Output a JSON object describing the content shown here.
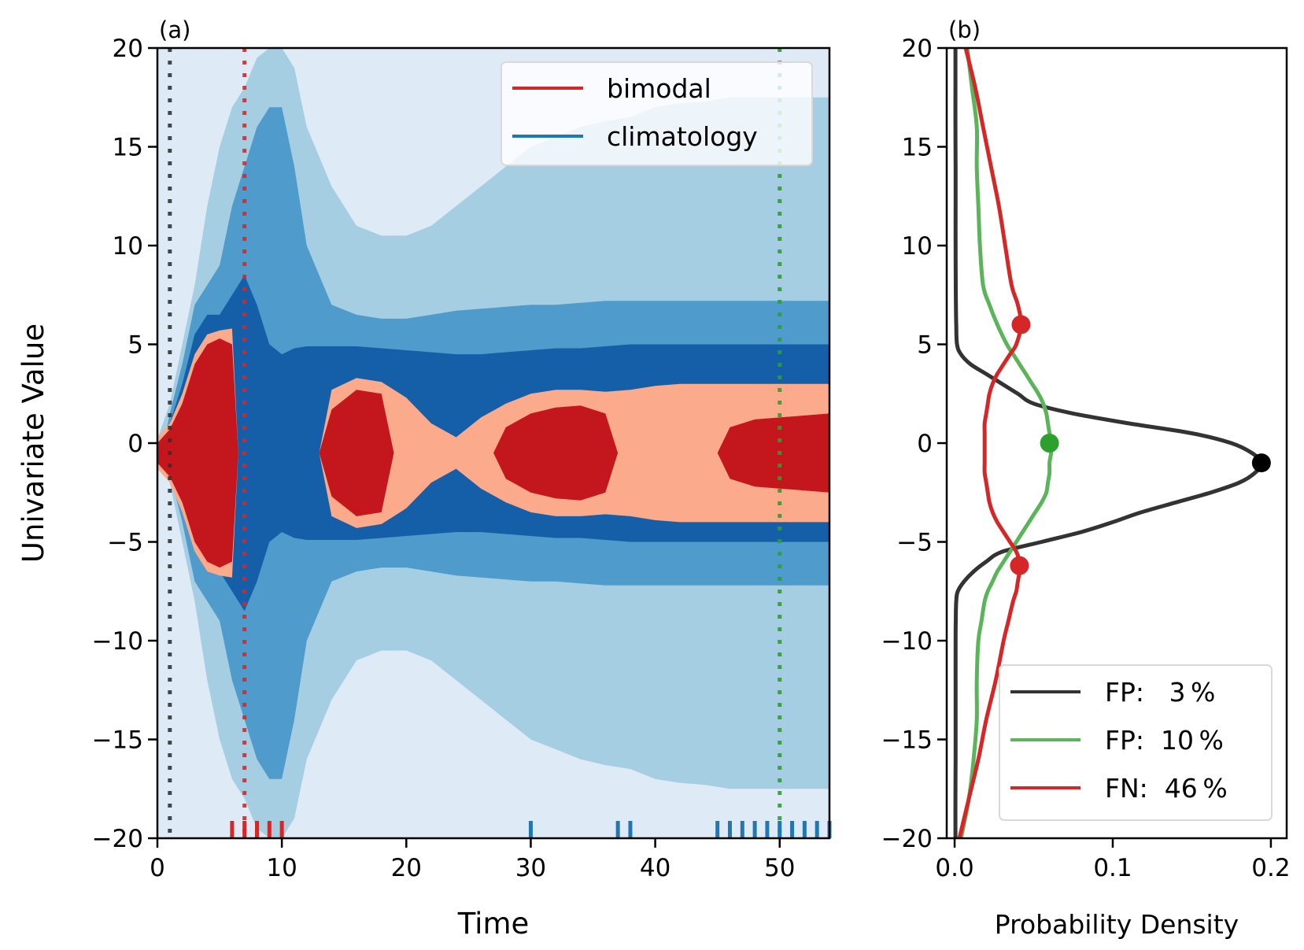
{
  "chart_data": [
    {
      "panel": "(a)",
      "type": "heatmap",
      "subtype": "filled-contour",
      "title": "",
      "xlabel": "Time",
      "ylabel": "Univariate Value",
      "xlim": [
        0,
        54
      ],
      "ylim": [
        -20,
        20
      ],
      "xticks": [
        0,
        10,
        20,
        30,
        40,
        50
      ],
      "yticks": [
        -20,
        -15,
        -10,
        -5,
        0,
        5,
        10,
        15,
        20
      ],
      "xtick_labels": [
        "0",
        "10",
        "20",
        "30",
        "40",
        "50"
      ],
      "ytick_labels": [
        "−20",
        "−15",
        "−10",
        "−5",
        "0",
        "5",
        "10",
        "15",
        "20"
      ],
      "contour_levels": [
        {
          "name": "clim-lightest",
          "color": "#deebf7"
        },
        {
          "name": "clim-light",
          "color": "#a6cee3"
        },
        {
          "name": "clim-mid",
          "color": "#4f9bcb"
        },
        {
          "name": "clim-dark",
          "color": "#155fa8"
        },
        {
          "name": "bimodal-light",
          "color": "#fbaa8b"
        },
        {
          "name": "bimodal-dark",
          "color": "#c4171d"
        }
      ],
      "envelopes": {
        "t": [
          0,
          1,
          2,
          3,
          4,
          5,
          6,
          7,
          8,
          9,
          10,
          11,
          12,
          14,
          16,
          18,
          20,
          22,
          24,
          26,
          28,
          30,
          32,
          34,
          36,
          38,
          40,
          42,
          44,
          46,
          48,
          50,
          52,
          54
        ],
        "clim_light_half_width": [
          0.2,
          2,
          5,
          8,
          12,
          15,
          17,
          18,
          19.5,
          20,
          20,
          19,
          16,
          13,
          11,
          10.5,
          10.5,
          11,
          12,
          13,
          14,
          15,
          15.5,
          16,
          16.3,
          16.5,
          17,
          17.2,
          17.3,
          17.5,
          17.5,
          17.5,
          17.5,
          17.5
        ],
        "clim_mid_half_width": [
          0,
          1.5,
          4,
          7,
          8,
          9,
          12,
          14,
          16,
          17,
          17,
          14,
          10,
          7,
          6.5,
          6.3,
          6.3,
          6.5,
          6.7,
          6.8,
          6.9,
          7,
          7,
          7.1,
          7.2,
          7.2,
          7.2,
          7.2,
          7.2,
          7.2,
          7.2,
          7.2,
          7.2,
          7.2
        ],
        "clim_dark_half_width": [
          0,
          1,
          3,
          5.5,
          6.5,
          6.5,
          7.5,
          8.5,
          7,
          5,
          4.5,
          4.8,
          4.9,
          4.9,
          4.9,
          4.8,
          4.7,
          4.6,
          4.5,
          4.5,
          4.6,
          4.7,
          4.8,
          4.8,
          4.9,
          5,
          5,
          5,
          5,
          5,
          5,
          5,
          5,
          5
        ],
        "bimodal_light_half_width": [
          0.8,
          1.5,
          3,
          5,
          6,
          6.2,
          6.3,
          0,
          0,
          0,
          0,
          0,
          0,
          3.2,
          3.8,
          3.6,
          2.8,
          1.5,
          0.8,
          1.8,
          2.5,
          3,
          3.2,
          3.2,
          3.1,
          3.2,
          3.4,
          3.5,
          3.5,
          3.5,
          3.5,
          3.5,
          3.5,
          3.5
        ],
        "bimodal_dark_half_width": [
          0.5,
          1.2,
          2.5,
          4.5,
          5.5,
          5.8,
          5.5,
          0,
          0,
          0,
          0,
          0,
          0,
          2.2,
          3.2,
          3,
          0,
          0,
          0,
          0,
          1.3,
          2,
          2.3,
          2.4,
          2,
          0,
          0,
          0,
          0,
          1.3,
          1.7,
          1.8,
          1.9,
          2
        ]
      },
      "vertical_lines": [
        {
          "x": 1,
          "color": "#333333",
          "style": "dotted"
        },
        {
          "x": 7,
          "color": "#d62728",
          "style": "dotted"
        },
        {
          "x": 50,
          "color": "#2ca02c",
          "style": "dotted"
        }
      ],
      "rug": {
        "bimodal": {
          "color": "#d62728",
          "x": [
            6,
            7,
            8,
            9,
            10
          ]
        },
        "climatology": {
          "color": "#1f77b4",
          "x": [
            30,
            37,
            38,
            45,
            46,
            47,
            48,
            49,
            50,
            51,
            52,
            53,
            54
          ]
        }
      },
      "legend": {
        "placement": "top-right",
        "entries": [
          {
            "label": "bimodal",
            "color": "#d62728"
          },
          {
            "label": "climatology",
            "color": "#1f77b4"
          }
        ]
      }
    },
    {
      "panel": "(b)",
      "type": "line",
      "title": "",
      "xlabel": "Probability Density",
      "ylabel": "",
      "xlim": [
        -0.005,
        0.21
      ],
      "ylim": [
        -20,
        20
      ],
      "xticks": [
        0.0,
        0.1,
        0.2
      ],
      "yticks": [
        -20,
        -15,
        -10,
        -5,
        0,
        5,
        10,
        15,
        20
      ],
      "xtick_labels": [
        "0.0",
        "0.1",
        "0.2"
      ],
      "ytick_labels": [
        "−20",
        "−15",
        "−10",
        "−5",
        "0",
        "5",
        "10",
        "15",
        "20"
      ],
      "y": [
        -20,
        -18,
        -16,
        -14,
        -12,
        -10,
        -9,
        -8,
        -7.5,
        -7,
        -6.5,
        -6,
        -5.5,
        -5,
        -4.5,
        -4,
        -3.5,
        -3,
        -2.5,
        -2,
        -1.5,
        -1,
        -0.5,
        0,
        0.5,
        1,
        1.5,
        2,
        2.5,
        3,
        3.5,
        4,
        4.5,
        5,
        6,
        7,
        8,
        10,
        12,
        14,
        16,
        18,
        20
      ],
      "series": [
        {
          "name": "FP: 3%",
          "color": "#333333",
          "values": [
            0.0005,
            0.0005,
            0.0006,
            0.0006,
            0.0006,
            0.0006,
            0.0007,
            0.001,
            0.002,
            0.006,
            0.012,
            0.02,
            0.03,
            0.055,
            0.08,
            0.1,
            0.118,
            0.14,
            0.162,
            0.18,
            0.19,
            0.194,
            0.188,
            0.175,
            0.15,
            0.11,
            0.075,
            0.05,
            0.04,
            0.03,
            0.02,
            0.01,
            0.004,
            0.0015,
            0.001,
            0.0008,
            0.0007,
            0.0006,
            0.0006,
            0.0006,
            0.0005,
            0.0005,
            0.0005
          ],
          "marker": {
            "x": 0.194,
            "y": -1,
            "color": "#000000"
          }
        },
        {
          "name": "FP: 10%",
          "color": "#5ab55a",
          "values": [
            0.004,
            0.009,
            0.012,
            0.014,
            0.014,
            0.015,
            0.017,
            0.019,
            0.021,
            0.024,
            0.027,
            0.031,
            0.035,
            0.039,
            0.043,
            0.047,
            0.051,
            0.055,
            0.058,
            0.059,
            0.06,
            0.06,
            0.061,
            0.061,
            0.06,
            0.059,
            0.058,
            0.056,
            0.053,
            0.049,
            0.045,
            0.041,
            0.037,
            0.033,
            0.027,
            0.022,
            0.018,
            0.016,
            0.015,
            0.014,
            0.014,
            0.011,
            0.008
          ],
          "marker": {
            "x": 0.06,
            "y": 0,
            "color": "#2ca02c"
          }
        },
        {
          "name": "FN: 46%",
          "color": "#d62728",
          "values": [
            0.003,
            0.009,
            0.015,
            0.02,
            0.026,
            0.031,
            0.034,
            0.037,
            0.039,
            0.04,
            0.041,
            0.041,
            0.039,
            0.035,
            0.031,
            0.027,
            0.024,
            0.022,
            0.021,
            0.02,
            0.019,
            0.019,
            0.019,
            0.019,
            0.019,
            0.019,
            0.02,
            0.021,
            0.022,
            0.024,
            0.027,
            0.031,
            0.035,
            0.039,
            0.042,
            0.04,
            0.036,
            0.032,
            0.028,
            0.023,
            0.018,
            0.013,
            0.007
          ],
          "markers": [
            {
              "x": 0.042,
              "y": 6,
              "color": "#d62728"
            },
            {
              "x": 0.041,
              "y": -6.2,
              "color": "#d62728"
            }
          ]
        }
      ],
      "legend": {
        "placement": "lower-right",
        "entries": [
          {
            "label": "FP:   3 %",
            "color": "#333333"
          },
          {
            "label": "FP:  10 %",
            "color": "#5ab55a"
          },
          {
            "label": "FN:  46 %",
            "color": "#d62728"
          }
        ]
      }
    }
  ]
}
